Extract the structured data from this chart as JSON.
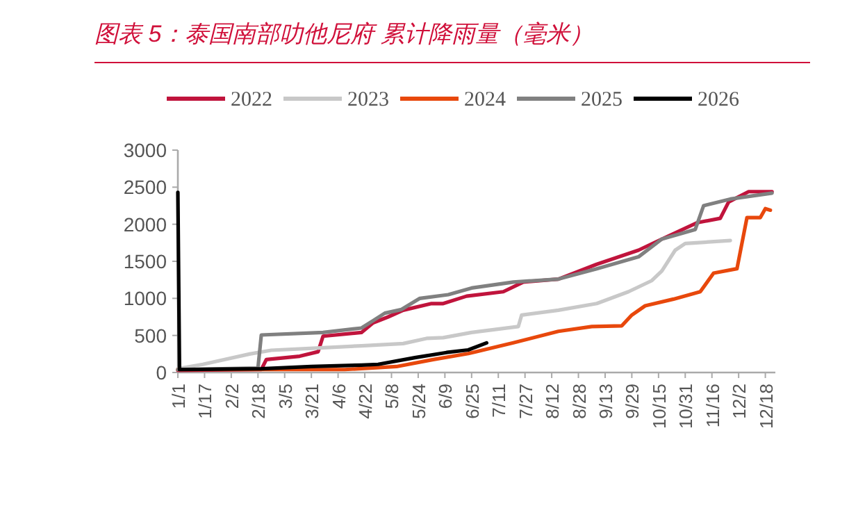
{
  "chart_data": {
    "type": "line",
    "title": "图表 5：泰国南部叻他尼府 累计降雨量（毫米）",
    "legend": "top",
    "grid": false,
    "marker": "none",
    "line_style": "solid",
    "xlim": [
      "--01-01",
      "--12-24"
    ],
    "ylim": [
      0,
      3000
    ],
    "yticks": [
      0,
      500,
      1000,
      1500,
      2000,
      2500,
      3000
    ],
    "xticks": [
      {
        "value": "--01-01",
        "label": "1/1"
      },
      {
        "value": "--01-17",
        "label": "1/17"
      },
      {
        "value": "--02-02",
        "label": "2/2"
      },
      {
        "value": "--02-18",
        "label": "2/18"
      },
      {
        "value": "--03-05",
        "label": "3/5"
      },
      {
        "value": "--03-21",
        "label": "3/21"
      },
      {
        "value": "--04-06",
        "label": "4/6"
      },
      {
        "value": "--04-22",
        "label": "4/22"
      },
      {
        "value": "--05-08",
        "label": "5/8"
      },
      {
        "value": "--05-24",
        "label": "5/24"
      },
      {
        "value": "--06-09",
        "label": "6/9"
      },
      {
        "value": "--06-25",
        "label": "6/25"
      },
      {
        "value": "--07-11",
        "label": "7/11"
      },
      {
        "value": "--07-27",
        "label": "7/27"
      },
      {
        "value": "--08-12",
        "label": "8/12"
      },
      {
        "value": "--08-28",
        "label": "8/28"
      },
      {
        "value": "--09-13",
        "label": "9/13"
      },
      {
        "value": "--09-29",
        "label": "9/29"
      },
      {
        "value": "--10-15",
        "label": "10/15"
      },
      {
        "value": "--10-31",
        "label": "10/31"
      },
      {
        "value": "--11-16",
        "label": "11/16"
      },
      {
        "value": "--12-02",
        "label": "12/2"
      },
      {
        "value": "--12-18",
        "label": "12/18"
      }
    ],
    "series": [
      {
        "name": "2022",
        "color": "#c0143c",
        "x": [
          "--01-01",
          "--02-20",
          "--02-23",
          "--03-14",
          "--03-25",
          "--03-28",
          "--04-20",
          "--04-27",
          "--05-06",
          "--05-15",
          "--06-01",
          "--06-08",
          "--06-22",
          "--07-14",
          "--07-26",
          "--08-16",
          "--09-08",
          "--10-03",
          "--10-17",
          "--11-07",
          "--11-21",
          "--11-26",
          "--12-08",
          "--12-22"
        ],
        "values": [
          30,
          40,
          175,
          220,
          280,
          490,
          540,
          670,
          750,
          840,
          930,
          930,
          1030,
          1090,
          1220,
          1260,
          1460,
          1650,
          1800,
          2020,
          2080,
          2300,
          2440,
          2440
        ]
      },
      {
        "name": "2023",
        "color": "#c8c8c8",
        "x": [
          "--01-01",
          "--01-16",
          "--02-13",
          "--02-26",
          "--03-24",
          "--04-20",
          "--05-15",
          "--05-29",
          "--06-08",
          "--06-25",
          "--07-23",
          "--07-25",
          "--08-16",
          "--09-08",
          "--09-27",
          "--10-11",
          "--10-17",
          "--10-25",
          "--10-31",
          "--11-27"
        ],
        "values": [
          50,
          110,
          250,
          300,
          330,
          360,
          390,
          460,
          470,
          540,
          620,
          775,
          840,
          930,
          1090,
          1240,
          1370,
          1650,
          1740,
          1780
        ]
      },
      {
        "name": "2024",
        "color": "#e8480c",
        "x": [
          "--01-01",
          "--04-10",
          "--05-11",
          "--06-02",
          "--06-23",
          "--07-20",
          "--08-16",
          "--09-05",
          "--09-23",
          "--09-29",
          "--10-07",
          "--10-24",
          "--11-09",
          "--11-17",
          "--12-01",
          "--12-07",
          "--12-15",
          "--12-18",
          "--12-21"
        ],
        "values": [
          40,
          40,
          80,
          175,
          255,
          400,
          555,
          620,
          630,
          775,
          900,
          990,
          1090,
          1340,
          1400,
          2090,
          2090,
          2210,
          2190
        ]
      },
      {
        "name": "2025",
        "color": "#808080",
        "x": [
          "--01-01",
          "--02-18",
          "--02-20",
          "--03-28",
          "--04-20",
          "--04-27",
          "--05-04",
          "--05-14",
          "--05-25",
          "--06-11",
          "--06-25",
          "--07-20",
          "--08-16",
          "--09-08",
          "--10-03",
          "--10-17",
          "--11-06",
          "--11-11",
          "--11-27",
          "--12-22"
        ],
        "values": [
          40,
          60,
          506,
          540,
          600,
          700,
          800,
          850,
          1000,
          1050,
          1140,
          1220,
          1260,
          1400,
          1560,
          1800,
          1930,
          2250,
          2340,
          2420
        ]
      },
      {
        "name": "2026",
        "color": "#000000",
        "x": [
          "--01-01",
          "--01-02",
          "--02-20",
          "--03-21",
          "--04-20",
          "--04-30",
          "--05-22",
          "--06-10",
          "--06-23",
          "--07-04"
        ],
        "values": [
          2430,
          40,
          50,
          80,
          100,
          110,
          200,
          270,
          305,
          400
        ]
      }
    ]
  }
}
